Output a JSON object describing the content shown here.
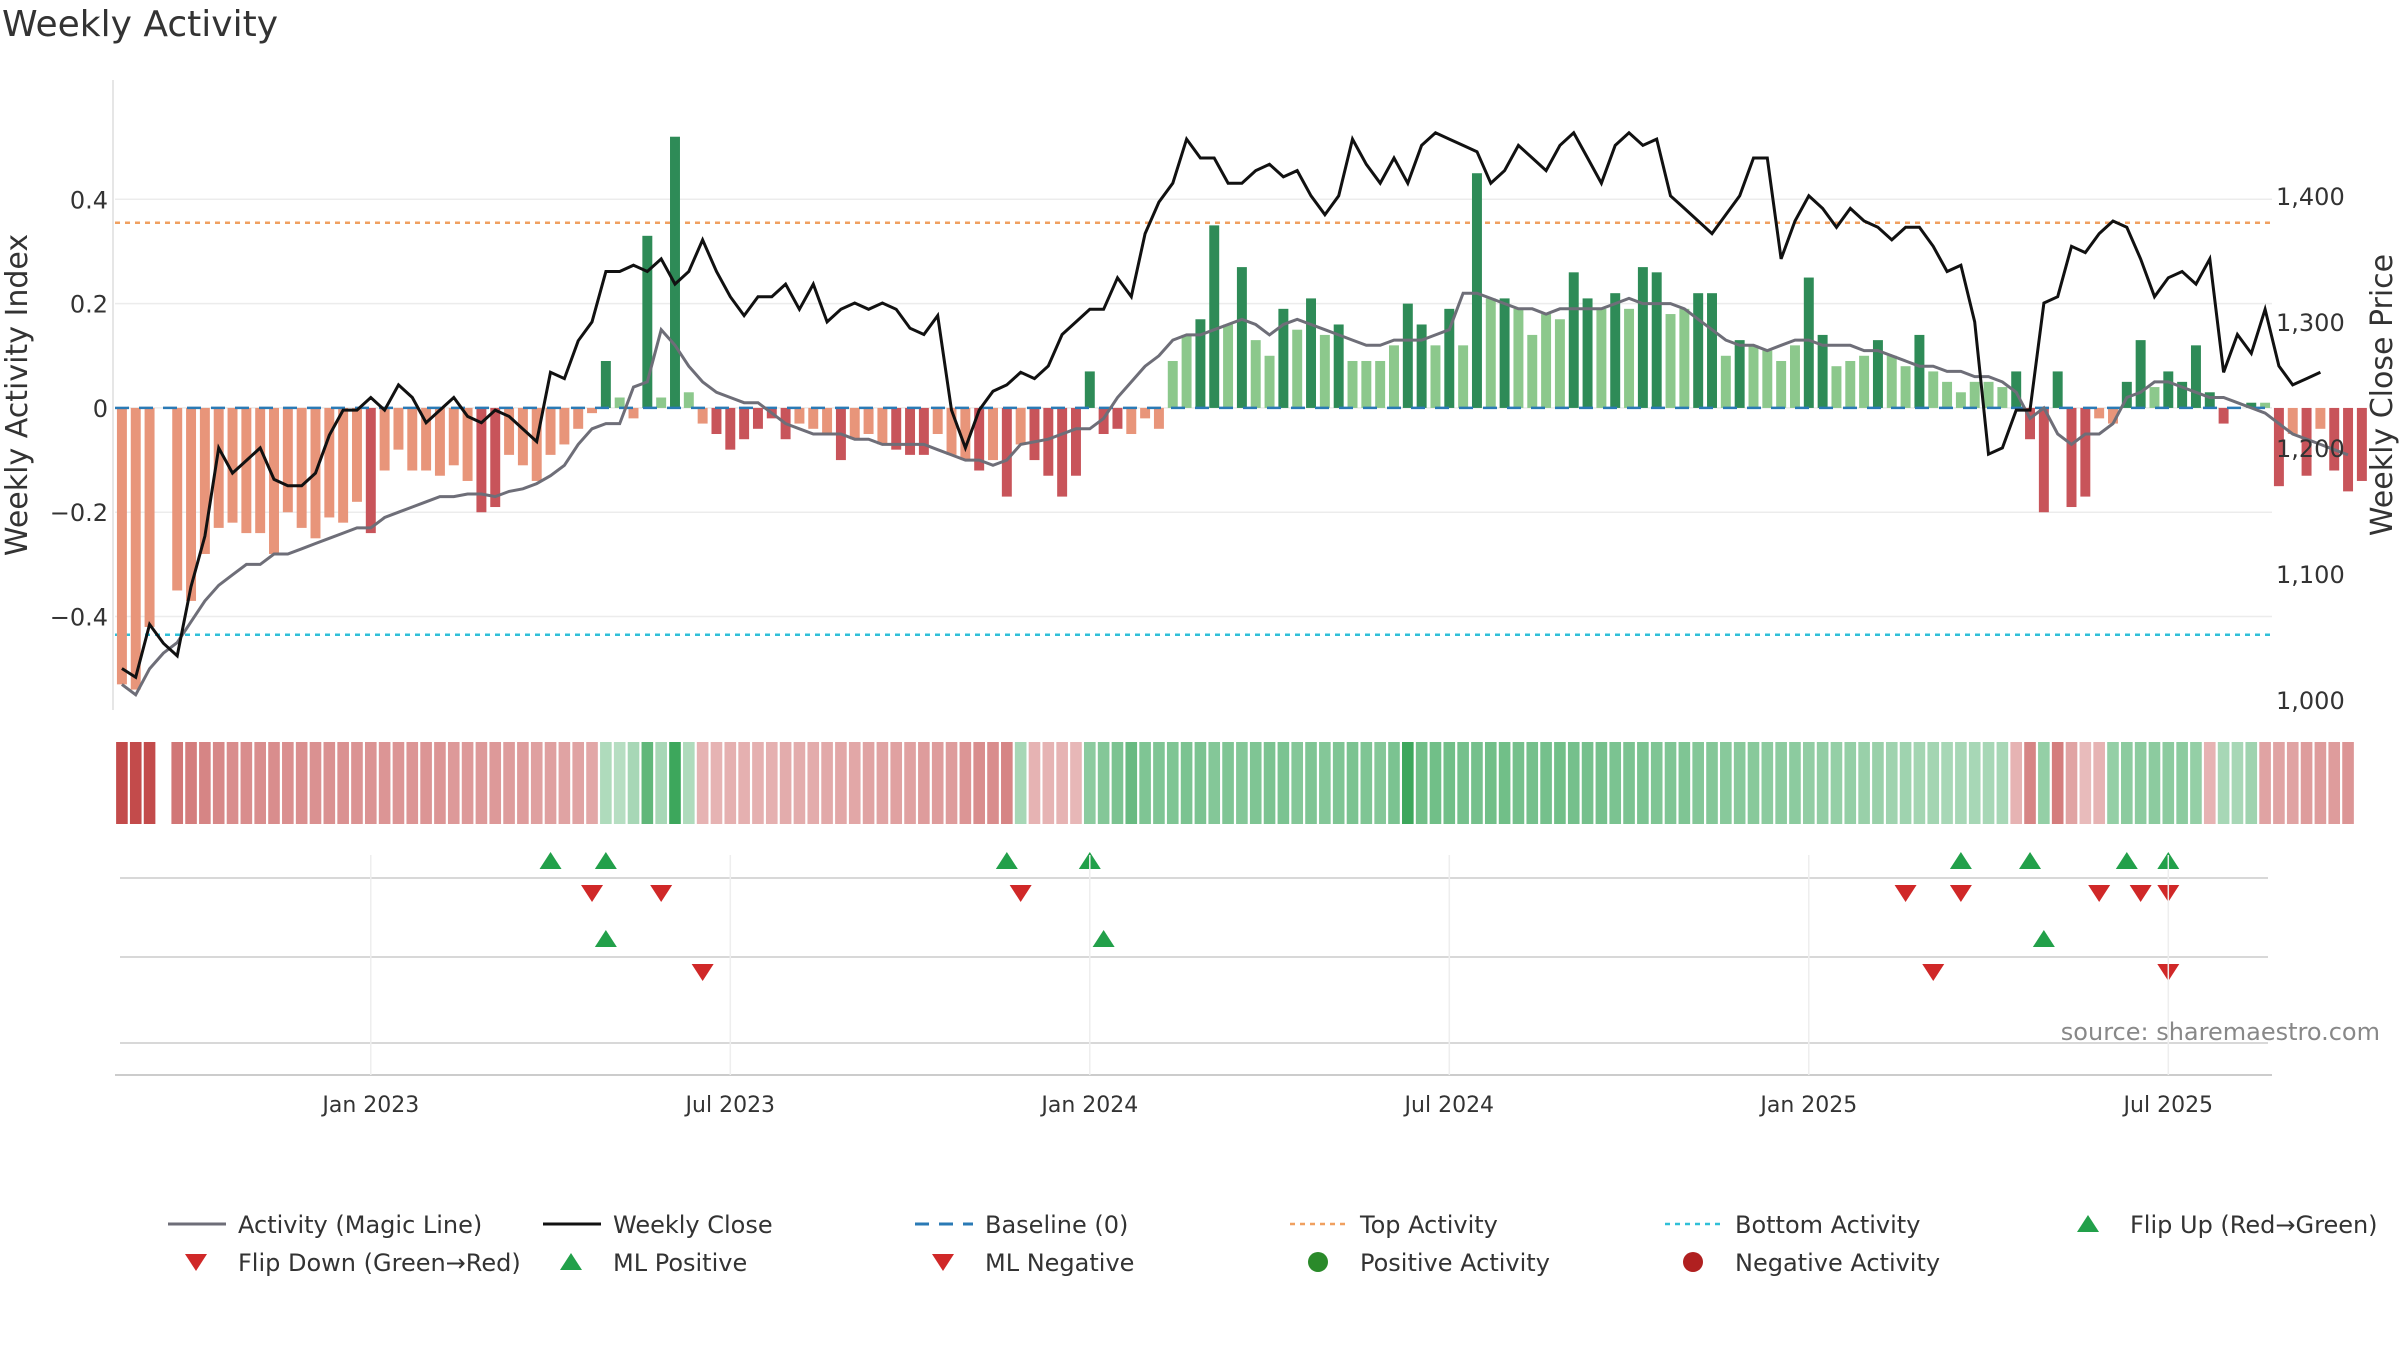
{
  "chart_data": {
    "type": "bar",
    "title": "Weekly Activity",
    "ylabel": "Weekly Activity Index",
    "y2label": "Weekly Close Price",
    "ylim": [
      -0.56,
      0.6
    ],
    "y2lim": [
      1000,
      1480
    ],
    "yticks": [
      {
        "value": 0.4,
        "label": "0.4"
      },
      {
        "value": 0.2,
        "label": "0.2"
      },
      {
        "value": 0,
        "label": "0"
      },
      {
        "value": -0.2,
        "label": "−0.2"
      },
      {
        "value": -0.4,
        "label": "−0.4"
      }
    ],
    "y2ticks": [
      {
        "value": 1400,
        "label": "1,400"
      },
      {
        "value": 1300,
        "label": "1,300"
      },
      {
        "value": 1200,
        "label": "1,200"
      },
      {
        "value": 1100,
        "label": "1,100"
      },
      {
        "value": 1000,
        "label": "1,000"
      }
    ],
    "xticks": [
      {
        "week": 18,
        "label": "Jan 2023"
      },
      {
        "week": 44,
        "label": "Jul 2023"
      },
      {
        "week": 70,
        "label": "Jan 2024"
      },
      {
        "week": 96,
        "label": "Jul 2024"
      },
      {
        "week": 122,
        "label": "Jan 2025"
      },
      {
        "week": 148,
        "label": "Jul 2025"
      }
    ],
    "x_range_weeks": [
      0,
      156
    ],
    "top_activity": 0.355,
    "bottom_activity": -0.435,
    "source": "source: sharemaestro.com",
    "activity": [
      -0.53,
      -0.54,
      -0.42,
      0,
      -0.35,
      -0.37,
      -0.28,
      -0.23,
      -0.22,
      -0.24,
      -0.24,
      -0.28,
      -0.2,
      -0.23,
      -0.25,
      -0.21,
      -0.22,
      -0.18,
      -0.24,
      -0.12,
      -0.08,
      -0.12,
      -0.12,
      -0.13,
      -0.11,
      -0.14,
      -0.2,
      -0.19,
      -0.09,
      -0.11,
      -0.14,
      -0.09,
      -0.07,
      -0.04,
      -0.01,
      0.09,
      0.02,
      -0.02,
      0.33,
      0.02,
      0.52,
      0.03,
      -0.03,
      -0.05,
      -0.08,
      -0.06,
      -0.04,
      -0.02,
      -0.06,
      -0.03,
      -0.04,
      -0.05,
      -0.1,
      -0.06,
      -0.05,
      -0.07,
      -0.08,
      -0.09,
      -0.09,
      -0.05,
      -0.09,
      -0.1,
      -0.12,
      -0.1,
      -0.17,
      -0.07,
      -0.1,
      -0.13,
      -0.17,
      -0.13,
      0.07,
      -0.05,
      -0.04,
      -0.05,
      -0.02,
      -0.04,
      0.09,
      0.14,
      0.17,
      0.35,
      0.16,
      0.27,
      0.13,
      0.1,
      0.19,
      0.15,
      0.21,
      0.14,
      0.16,
      0.09,
      0.09,
      0.09,
      0.12,
      0.2,
      0.16,
      0.12,
      0.19,
      0.12,
      0.45,
      0.21,
      0.21,
      0.19,
      0.14,
      0.18,
      0.17,
      0.26,
      0.21,
      0.19,
      0.22,
      0.19,
      0.27,
      0.26,
      0.18,
      0.19,
      0.22,
      0.22,
      0.1,
      0.13,
      0.12,
      0.11,
      0.09,
      0.12,
      0.25,
      0.14,
      0.08,
      0.09,
      0.1,
      0.13,
      0.1,
      0.08,
      0.14,
      0.07,
      0.05,
      0.03,
      0.05,
      0.05,
      0.04,
      0.07,
      -0.06,
      -0.2,
      0.07,
      -0.19,
      -0.17,
      -0.02,
      -0.03,
      0.05,
      0.13,
      0.04,
      0.07,
      0.05,
      0.12,
      0.03,
      -0.03,
      0,
      0.01,
      0.01,
      -0.15,
      -0.05,
      -0.13,
      -0.04,
      -0.12,
      -0.16,
      -0.14
    ],
    "magic_line": [
      -0.53,
      -0.55,
      -0.5,
      -0.47,
      -0.45,
      -0.41,
      -0.37,
      -0.34,
      -0.32,
      -0.3,
      -0.3,
      -0.28,
      -0.28,
      -0.27,
      -0.26,
      -0.25,
      -0.24,
      -0.23,
      -0.23,
      -0.21,
      -0.2,
      -0.19,
      -0.18,
      -0.17,
      -0.17,
      -0.165,
      -0.165,
      -0.17,
      -0.16,
      -0.155,
      -0.145,
      -0.13,
      -0.11,
      -0.07,
      -0.04,
      -0.03,
      -0.03,
      0.04,
      0.05,
      0.15,
      0.12,
      0.08,
      0.05,
      0.03,
      0.02,
      0.01,
      0.01,
      -0.01,
      -0.03,
      -0.04,
      -0.05,
      -0.05,
      -0.05,
      -0.06,
      -0.06,
      -0.07,
      -0.07,
      -0.07,
      -0.07,
      -0.08,
      -0.09,
      -0.1,
      -0.1,
      -0.11,
      -0.1,
      -0.07,
      -0.065,
      -0.06,
      -0.05,
      -0.04,
      -0.04,
      -0.02,
      0.02,
      0.05,
      0.08,
      0.1,
      0.13,
      0.14,
      0.14,
      0.15,
      0.16,
      0.17,
      0.16,
      0.14,
      0.16,
      0.17,
      0.16,
      0.15,
      0.14,
      0.13,
      0.12,
      0.12,
      0.13,
      0.13,
      0.13,
      0.14,
      0.15,
      0.22,
      0.22,
      0.21,
      0.2,
      0.19,
      0.19,
      0.18,
      0.19,
      0.19,
      0.19,
      0.19,
      0.2,
      0.21,
      0.2,
      0.2,
      0.2,
      0.19,
      0.17,
      0.15,
      0.13,
      0.12,
      0.12,
      0.11,
      0.12,
      0.13,
      0.13,
      0.12,
      0.12,
      0.12,
      0.11,
      0.11,
      0.1,
      0.09,
      0.08,
      0.08,
      0.07,
      0.07,
      0.06,
      0.06,
      0.05,
      0.03,
      -0.02,
      0,
      -0.05,
      -0.07,
      -0.05,
      -0.05,
      -0.03,
      0.02,
      0.03,
      0.05,
      0.05,
      0.04,
      0.03,
      0.02,
      0.02,
      0.01,
      0,
      -0.01,
      -0.03,
      -0.05,
      -0.06,
      -0.07,
      -0.08,
      -0.09
    ],
    "weekly_close": [
      1025,
      1018,
      1060,
      1045,
      1035,
      1090,
      1130,
      1200,
      1180,
      1190,
      1200,
      1175,
      1170,
      1170,
      1180,
      1210,
      1230,
      1230,
      1240,
      1230,
      1250,
      1240,
      1220,
      1230,
      1240,
      1225,
      1220,
      1230,
      1225,
      1215,
      1205,
      1260,
      1255,
      1285,
      1300,
      1340,
      1340,
      1345,
      1340,
      1350,
      1330,
      1340,
      1365,
      1340,
      1320,
      1305,
      1320,
      1320,
      1330,
      1310,
      1330,
      1300,
      1310,
      1315,
      1310,
      1315,
      1310,
      1295,
      1290,
      1305,
      1230,
      1200,
      1230,
      1245,
      1250,
      1260,
      1255,
      1265,
      1290,
      1300,
      1310,
      1310,
      1335,
      1320,
      1370,
      1395,
      1410,
      1445,
      1430,
      1430,
      1410,
      1410,
      1420,
      1425,
      1415,
      1420,
      1400,
      1385,
      1400,
      1445,
      1425,
      1410,
      1430,
      1410,
      1440,
      1450,
      1445,
      1440,
      1435,
      1410,
      1420,
      1440,
      1430,
      1420,
      1440,
      1450,
      1430,
      1410,
      1440,
      1450,
      1440,
      1445,
      1400,
      1390,
      1380,
      1370,
      1385,
      1400,
      1430,
      1430,
      1350,
      1380,
      1400,
      1390,
      1375,
      1390,
      1380,
      1375,
      1365,
      1375,
      1375,
      1360,
      1340,
      1345,
      1300,
      1195,
      1200,
      1230,
      1230,
      1315,
      1320,
      1360,
      1355,
      1370,
      1380,
      1375,
      1350,
      1320,
      1335,
      1340,
      1330,
      1350,
      1260,
      1290,
      1275,
      1310,
      1265,
      1250,
      1255,
      1260
    ],
    "heat_strip": [
      -0.9,
      -0.9,
      -0.9,
      0,
      -0.6,
      -0.55,
      -0.5,
      -0.48,
      -0.45,
      -0.45,
      -0.45,
      -0.45,
      -0.43,
      -0.43,
      -0.42,
      -0.42,
      -0.42,
      -0.41,
      -0.41,
      -0.4,
      -0.4,
      -0.4,
      -0.4,
      -0.4,
      -0.38,
      -0.38,
      -0.38,
      -0.38,
      -0.35,
      -0.35,
      -0.33,
      -0.33,
      -0.3,
      -0.3,
      -0.28,
      0.15,
      0.12,
      0.2,
      0.6,
      0.2,
      0.8,
      0.15,
      -0.2,
      -0.2,
      -0.22,
      -0.22,
      -0.22,
      -0.22,
      -0.25,
      -0.25,
      -0.25,
      -0.27,
      -0.28,
      -0.28,
      -0.3,
      -0.3,
      -0.32,
      -0.32,
      -0.35,
      -0.35,
      -0.35,
      -0.4,
      -0.45,
      -0.45,
      -0.5,
      0.2,
      -0.2,
      -0.2,
      -0.2,
      -0.18,
      0.35,
      0.4,
      0.45,
      0.55,
      0.42,
      0.42,
      0.42,
      0.45,
      0.45,
      0.4,
      0.42,
      0.4,
      0.42,
      0.45,
      0.45,
      0.4,
      0.42,
      0.4,
      0.42,
      0.45,
      0.42,
      0.4,
      0.45,
      0.8,
      0.5,
      0.5,
      0.5,
      0.48,
      0.48,
      0.5,
      0.5,
      0.48,
      0.48,
      0.48,
      0.5,
      0.48,
      0.48,
      0.48,
      0.45,
      0.45,
      0.45,
      0.42,
      0.42,
      0.42,
      0.4,
      0.4,
      0.38,
      0.38,
      0.38,
      0.35,
      0.35,
      0.35,
      0.32,
      0.32,
      0.3,
      0.3,
      0.28,
      0.28,
      0.25,
      0.25,
      0.22,
      0.22,
      0.2,
      0.2,
      0.2,
      0.2,
      0.2,
      -0.2,
      -0.5,
      0.3,
      -0.55,
      -0.3,
      -0.15,
      -0.2,
      0.3,
      0.35,
      0.35,
      0.35,
      0.35,
      0.35,
      0.3,
      -0.2,
      0.2,
      0.2,
      0.25,
      -0.3,
      -0.3,
      -0.3,
      -0.35,
      -0.35,
      -0.35,
      -0.4
    ],
    "flip_up_weeks": [
      31,
      35,
      64,
      70,
      133,
      138,
      145,
      148
    ],
    "flip_down_weeks": [
      34,
      39,
      65,
      129,
      133,
      143,
      146,
      148
    ],
    "ml_positive_weeks": [
      35,
      71,
      139
    ],
    "ml_negative_weeks": [
      42,
      131,
      148
    ],
    "colors": {
      "pos_dark": "#2e8b57",
      "pos_light": "#8cc88c",
      "neg_dark": "#c8545a",
      "neg_light": "#e8957a",
      "magic_line": "#6e6e78",
      "close": "#111111",
      "baseline": "#2a7ab5",
      "top": "#f0a060",
      "bottom": "#30c0d8",
      "marker_up": "#22a04a",
      "marker_down": "#d02828"
    },
    "legend": [
      {
        "label": "Activity (Magic Line)",
        "kind": "line",
        "color": "#6e6e78"
      },
      {
        "label": "Weekly Close",
        "kind": "line",
        "color": "#111111"
      },
      {
        "label": "Baseline (0)",
        "kind": "dash",
        "color": "#2a7ab5"
      },
      {
        "label": "Top Activity",
        "kind": "dot",
        "color": "#f0a060"
      },
      {
        "label": "Bottom Activity",
        "kind": "dot",
        "color": "#30c0d8"
      },
      {
        "label": "Flip Up (Red→Green)",
        "kind": "tri-up",
        "color": "#22a04a"
      },
      {
        "label": "Flip Down (Green→Red)",
        "kind": "tri-down",
        "color": "#d02828"
      },
      {
        "label": "ML Positive",
        "kind": "tri-up",
        "color": "#22a04a"
      },
      {
        "label": "ML Negative",
        "kind": "tri-down",
        "color": "#d02828"
      },
      {
        "label": "Positive Activity",
        "kind": "circle",
        "color": "#2a8a2a"
      },
      {
        "label": "Negative Activity",
        "kind": "circle",
        "color": "#b02020"
      }
    ]
  }
}
